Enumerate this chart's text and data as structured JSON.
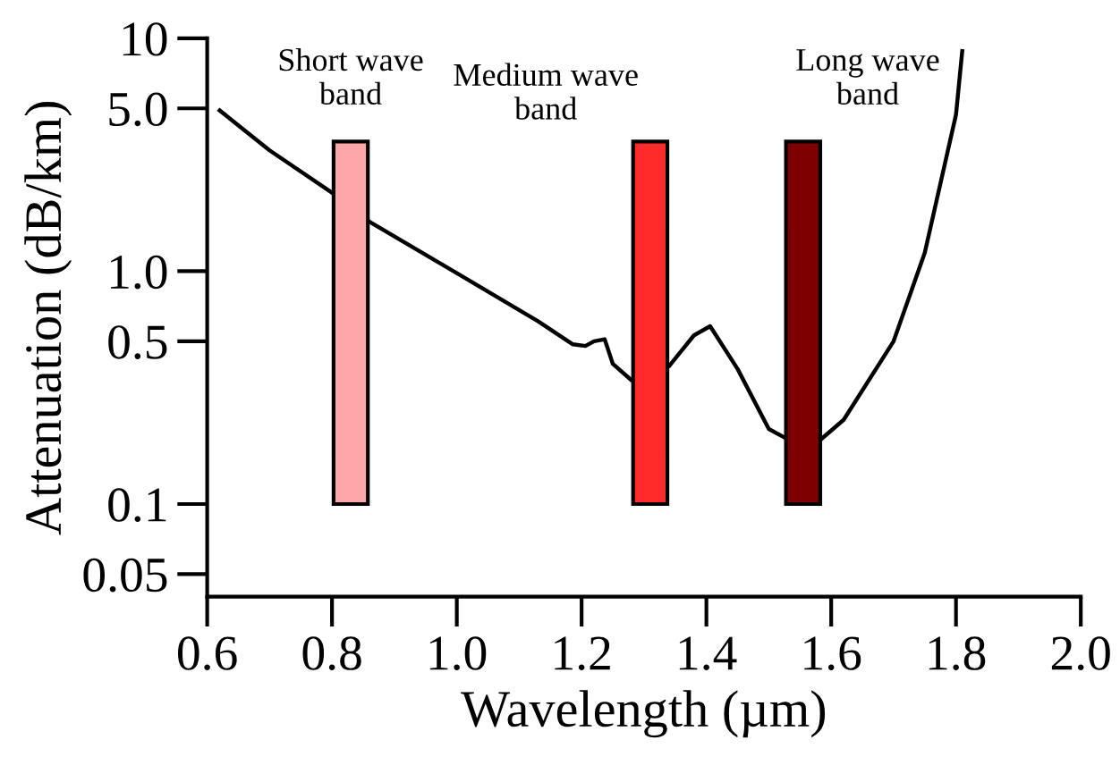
{
  "chart_data": {
    "type": "line",
    "xlabel": "Wavelength (µm)",
    "ylabel": "Attenuation (dB/km)",
    "log": "y",
    "xlim": [
      0.6,
      2.0
    ],
    "ylim": [
      0.04,
      10
    ],
    "xticks": [
      0.6,
      0.8,
      {
        "value": 1.0,
        "label": "1.0"
      },
      1.2,
      1.4,
      1.6,
      1.8,
      {
        "value": 2.0,
        "label": "2.0"
      }
    ],
    "yticks": [
      0.05,
      0.1,
      0.5,
      {
        "value": 1.0,
        "label": "1.0"
      },
      {
        "value": 5.0,
        "label": "5.0"
      },
      10
    ],
    "grid": false,
    "legend": false,
    "series": [
      {
        "type": "bar",
        "x": [
          0.83,
          1.31,
          1.555
        ],
        "base": [
          0.1,
          0.1,
          0.1
        ],
        "values": [
          3.5,
          3.5,
          3.5
        ],
        "colors": [
          "#ffa6a8",
          "#ff2b2b",
          "#7f0000"
        ]
      },
      {
        "color": "#000000",
        "x": [
          0.62,
          0.7,
          0.8,
          0.86,
          1.0,
          1.13,
          1.186,
          1.206,
          1.22,
          1.237,
          1.25,
          1.28,
          1.34,
          1.38,
          1.406,
          1.45,
          1.5,
          1.53,
          1.58,
          1.62,
          1.7,
          1.75,
          1.8,
          1.81
        ],
        "values": [
          4.9,
          3.3,
          2.17,
          1.63,
          0.98,
          0.61,
          0.485,
          0.477,
          0.5,
          0.51,
          0.4,
          0.34,
          0.39,
          0.53,
          0.58,
          0.38,
          0.21,
          0.19,
          0.186,
          0.23,
          0.5,
          1.2,
          4.7,
          8.8
        ]
      }
    ],
    "annotations": [
      "Short wave\nband",
      "Medium wave\nband",
      "Long wave\nband"
    ]
  }
}
